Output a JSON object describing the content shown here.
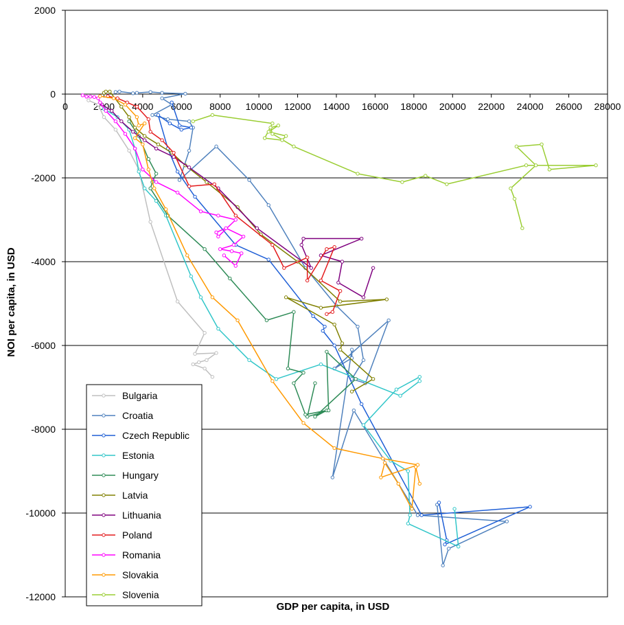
{
  "chart_data": {
    "type": "line",
    "title": "",
    "xlabel": "GDP per capita, in USD",
    "ylabel": "NOI per capita, in USD",
    "xlim": [
      0,
      28000
    ],
    "ylim": [
      -12000,
      2000
    ],
    "x_ticks": [
      0,
      2000,
      4000,
      6000,
      8000,
      10000,
      12000,
      14000,
      16000,
      18000,
      20000,
      22000,
      24000,
      26000,
      28000
    ],
    "y_ticks": [
      2000,
      0,
      -2000,
      -4000,
      -6000,
      -8000,
      -10000,
      -12000
    ],
    "x_tick_labels": [
      "0",
      "2000",
      "4000",
      "6000",
      "8000",
      "10000",
      "12000",
      "14000",
      "16000",
      "18000",
      "20000",
      "22000",
      "24000",
      "26000",
      "28000"
    ],
    "y_tick_labels": [
      "2000",
      "0",
      "-2000",
      "-4000",
      "-6000",
      "-8000",
      "-10000",
      "-12000"
    ],
    "grid": "horizontal major lines",
    "legend_position": "bottom-left",
    "series": [
      {
        "name": "Bulgaria",
        "color": "#bfbfbf",
        "points": [
          [
            1200,
            -150
          ],
          [
            1700,
            -250
          ],
          [
            2000,
            -550
          ],
          [
            2600,
            -850
          ],
          [
            3300,
            -1350
          ],
          [
            3800,
            -1800
          ],
          [
            4400,
            -3050
          ],
          [
            5800,
            -4950
          ],
          [
            7200,
            -5700
          ],
          [
            6700,
            -6200
          ],
          [
            7800,
            -6180
          ],
          [
            7300,
            -6350
          ],
          [
            6900,
            -6400
          ],
          [
            6600,
            -6450
          ],
          [
            7200,
            -6550
          ],
          [
            7600,
            -6750
          ]
        ]
      },
      {
        "name": "Croatia",
        "color": "#4f81bd",
        "points": [
          [
            2600,
            50
          ],
          [
            2800,
            60
          ],
          [
            3500,
            20
          ],
          [
            3700,
            30
          ],
          [
            4400,
            50
          ],
          [
            5000,
            30
          ],
          [
            6200,
            10
          ],
          [
            5000,
            -100
          ],
          [
            5500,
            -250
          ],
          [
            4500,
            -500
          ],
          [
            5300,
            -600
          ],
          [
            6400,
            -650
          ],
          [
            6600,
            -800
          ],
          [
            6400,
            -1350
          ],
          [
            5900,
            -2050
          ],
          [
            7800,
            -1250
          ],
          [
            9500,
            -2050
          ],
          [
            10500,
            -2650
          ],
          [
            12400,
            -4150
          ],
          [
            14000,
            -5050
          ],
          [
            15100,
            -5550
          ],
          [
            15400,
            -6350
          ],
          [
            14800,
            -6800
          ],
          [
            15500,
            -6900
          ],
          [
            16700,
            -5400
          ],
          [
            13900,
            -6550
          ],
          [
            14800,
            -6300
          ],
          [
            14800,
            -6100
          ],
          [
            13800,
            -9150
          ],
          [
            14900,
            -7550
          ],
          [
            18200,
            -10050
          ],
          [
            22800,
            -10200
          ],
          [
            19800,
            -10850
          ],
          [
            19500,
            -11250
          ],
          [
            19200,
            -9800
          ]
        ]
      },
      {
        "name": "Czech Republic",
        "color": "#1f5fd6",
        "points": [
          [
            5500,
            -200
          ],
          [
            5900,
            -750
          ],
          [
            6500,
            -800
          ],
          [
            6000,
            -850
          ],
          [
            5400,
            -700
          ],
          [
            4800,
            -500
          ],
          [
            5300,
            -1300
          ],
          [
            5800,
            -1850
          ],
          [
            6700,
            -2450
          ],
          [
            8800,
            -3600
          ],
          [
            10500,
            -3950
          ],
          [
            12800,
            -5300
          ],
          [
            13400,
            -5550
          ],
          [
            13300,
            -5650
          ],
          [
            13900,
            -6000
          ],
          [
            15300,
            -7400
          ],
          [
            18400,
            -10050
          ],
          [
            24000,
            -9850
          ],
          [
            19600,
            -10750
          ],
          [
            19700,
            -10650
          ],
          [
            19300,
            -9750
          ]
        ]
      },
      {
        "name": "Estonia",
        "color": "#31c6c9",
        "points": [
          [
            2000,
            -350
          ],
          [
            2700,
            -550
          ],
          [
            3300,
            -850
          ],
          [
            3600,
            -1300
          ],
          [
            3800,
            -1850
          ],
          [
            4100,
            -2250
          ],
          [
            4700,
            -2550
          ],
          [
            5200,
            -2900
          ],
          [
            6500,
            -4350
          ],
          [
            7000,
            -4850
          ],
          [
            7900,
            -5600
          ],
          [
            9500,
            -6350
          ],
          [
            10900,
            -6800
          ],
          [
            13200,
            -6450
          ],
          [
            17300,
            -7200
          ],
          [
            18300,
            -6850
          ],
          [
            18300,
            -6750
          ],
          [
            17100,
            -7050
          ],
          [
            15400,
            -7900
          ],
          [
            16800,
            -8750
          ],
          [
            17700,
            -9000
          ],
          [
            17800,
            -10050
          ],
          [
            17700,
            -10250
          ],
          [
            20300,
            -10800
          ],
          [
            20100,
            -9900
          ]
        ]
      },
      {
        "name": "Hungary",
        "color": "#2e8b57",
        "points": [
          [
            3300,
            -650
          ],
          [
            3800,
            -1000
          ],
          [
            4300,
            -1550
          ],
          [
            4700,
            -1900
          ],
          [
            4500,
            -2100
          ],
          [
            4400,
            -2250
          ],
          [
            5300,
            -2900
          ],
          [
            7200,
            -3700
          ],
          [
            8500,
            -4400
          ],
          [
            10400,
            -5400
          ],
          [
            11800,
            -5200
          ],
          [
            11500,
            -6550
          ],
          [
            12300,
            -6650
          ],
          [
            11800,
            -6900
          ],
          [
            12400,
            -7650
          ],
          [
            13500,
            -7550
          ],
          [
            12900,
            -7700
          ],
          [
            15000,
            -6800
          ],
          [
            13500,
            -6150
          ],
          [
            13600,
            -7550
          ],
          [
            12500,
            -7700
          ],
          [
            12900,
            -6900
          ]
        ]
      },
      {
        "name": "Latvia",
        "color": "#808000",
        "points": [
          [
            2000,
            30
          ],
          [
            2100,
            60
          ],
          [
            2300,
            60
          ],
          [
            2900,
            -300
          ],
          [
            3300,
            -550
          ],
          [
            3600,
            -800
          ],
          [
            4100,
            -1000
          ],
          [
            4800,
            -1200
          ],
          [
            5500,
            -1400
          ],
          [
            6200,
            -1700
          ],
          [
            7300,
            -2100
          ],
          [
            8900,
            -2700
          ],
          [
            10100,
            -3350
          ],
          [
            12000,
            -4000
          ],
          [
            14200,
            -4950
          ],
          [
            16600,
            -4900
          ],
          [
            13200,
            -5100
          ],
          [
            11400,
            -4850
          ],
          [
            13900,
            -5500
          ],
          [
            14300,
            -5950
          ],
          [
            14200,
            -6100
          ],
          [
            15900,
            -6800
          ],
          [
            14800,
            -7100
          ]
        ]
      },
      {
        "name": "Lithuania",
        "color": "#7f007f",
        "points": [
          [
            1900,
            -250
          ],
          [
            2400,
            -400
          ],
          [
            2900,
            -650
          ],
          [
            3500,
            -900
          ],
          [
            4100,
            -1100
          ],
          [
            4700,
            -1300
          ],
          [
            5600,
            -1500
          ],
          [
            6400,
            -1750
          ],
          [
            7900,
            -2250
          ],
          [
            9900,
            -3200
          ],
          [
            12700,
            -4150
          ],
          [
            12200,
            -3600
          ],
          [
            12300,
            -3450
          ],
          [
            15300,
            -3450
          ],
          [
            13200,
            -3850
          ],
          [
            14300,
            -4000
          ],
          [
            14100,
            -4500
          ],
          [
            15400,
            -4850
          ],
          [
            15900,
            -4150
          ]
        ]
      },
      {
        "name": "Poland",
        "color": "#e31a1c",
        "points": [
          [
            2200,
            -50
          ],
          [
            2700,
            -100
          ],
          [
            3200,
            -200
          ],
          [
            3700,
            -300
          ],
          [
            4300,
            -600
          ],
          [
            4400,
            -900
          ],
          [
            5000,
            -1100
          ],
          [
            5600,
            -1400
          ],
          [
            6400,
            -2200
          ],
          [
            7700,
            -2150
          ],
          [
            8800,
            -2900
          ],
          [
            10700,
            -3600
          ],
          [
            11300,
            -4150
          ],
          [
            12500,
            -3900
          ],
          [
            12500,
            -4450
          ],
          [
            13500,
            -3700
          ],
          [
            13900,
            -3650
          ],
          [
            13200,
            -4450
          ],
          [
            14200,
            -4700
          ],
          [
            13800,
            -5200
          ],
          [
            13500,
            -5250
          ]
        ]
      },
      {
        "name": "Romania",
        "color": "#ff00ff",
        "points": [
          [
            900,
            -30
          ],
          [
            1100,
            -60
          ],
          [
            1300,
            -60
          ],
          [
            1500,
            -70
          ],
          [
            1700,
            -100
          ],
          [
            1800,
            -200
          ],
          [
            2100,
            -400
          ],
          [
            2600,
            -650
          ],
          [
            3100,
            -950
          ],
          [
            3600,
            -1300
          ],
          [
            4000,
            -1800
          ],
          [
            4700,
            -2100
          ],
          [
            5800,
            -2350
          ],
          [
            7000,
            -2800
          ],
          [
            7900,
            -2900
          ],
          [
            8800,
            -3000
          ],
          [
            7900,
            -3400
          ],
          [
            7800,
            -3300
          ],
          [
            8300,
            -3200
          ],
          [
            9200,
            -3400
          ],
          [
            8700,
            -3600
          ],
          [
            8000,
            -3700
          ],
          [
            8600,
            -3750
          ],
          [
            9100,
            -3800
          ],
          [
            8800,
            -4100
          ],
          [
            8200,
            -3850
          ]
        ]
      },
      {
        "name": "Slovakia",
        "color": "#ff9900",
        "points": [
          [
            1800,
            -50
          ],
          [
            2500,
            -100
          ],
          [
            3100,
            -250
          ],
          [
            3700,
            -550
          ],
          [
            3800,
            -750
          ],
          [
            4100,
            -700
          ],
          [
            3600,
            -1050
          ],
          [
            4000,
            -1200
          ],
          [
            4300,
            -1800
          ],
          [
            4600,
            -2250
          ],
          [
            5200,
            -2750
          ],
          [
            6300,
            -3850
          ],
          [
            7600,
            -4850
          ],
          [
            8900,
            -5400
          ],
          [
            10700,
            -6850
          ],
          [
            12300,
            -7850
          ],
          [
            13900,
            -8450
          ],
          [
            16400,
            -8700
          ],
          [
            18200,
            -8850
          ],
          [
            16300,
            -9150
          ],
          [
            16500,
            -8800
          ],
          [
            17200,
            -9300
          ],
          [
            17900,
            -9900
          ],
          [
            18100,
            -8900
          ],
          [
            18300,
            -9300
          ]
        ]
      },
      {
        "name": "Slovenia",
        "color": "#9acd32",
        "points": [
          [
            6600,
            -650
          ],
          [
            7600,
            -500
          ],
          [
            10700,
            -700
          ],
          [
            10300,
            -1050
          ],
          [
            11200,
            -1100
          ],
          [
            11400,
            -1000
          ],
          [
            10500,
            -900
          ],
          [
            11000,
            -750
          ],
          [
            10600,
            -800
          ],
          [
            10700,
            -950
          ],
          [
            11800,
            -1250
          ],
          [
            15100,
            -1900
          ],
          [
            17400,
            -2100
          ],
          [
            18600,
            -1950
          ],
          [
            19700,
            -2150
          ],
          [
            23800,
            -1700
          ],
          [
            27400,
            -1700
          ],
          [
            25000,
            -1800
          ],
          [
            24600,
            -1200
          ],
          [
            23300,
            -1250
          ],
          [
            24300,
            -1700
          ],
          [
            23000,
            -2250
          ],
          [
            23200,
            -2500
          ],
          [
            23600,
            -3200
          ]
        ]
      }
    ]
  }
}
